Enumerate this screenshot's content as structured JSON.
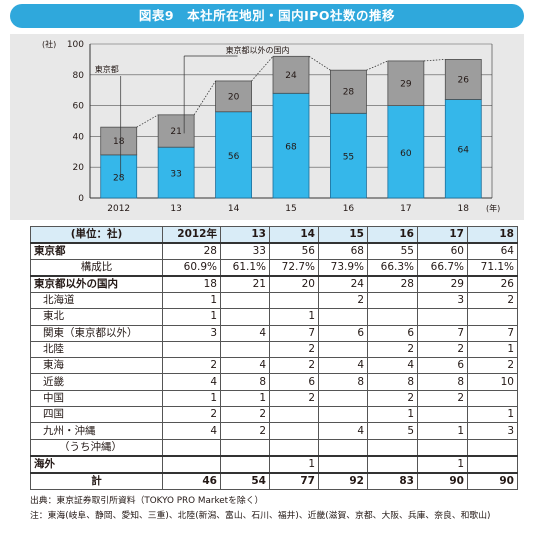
{
  "title": "図表9　本社所在地別・国内IPO社数の推移",
  "chart_data": {
    "type": "bar",
    "stacked": true,
    "categories": [
      "2012",
      "13",
      "14",
      "15",
      "16",
      "17",
      "18"
    ],
    "x_unit": "(年)",
    "y_unit": "(社)",
    "ylim": [
      0,
      100
    ],
    "yticks": [
      0,
      20,
      40,
      60,
      80,
      100
    ],
    "series": [
      {
        "name": "東京都",
        "values": [
          28,
          33,
          56,
          68,
          55,
          60,
          64
        ],
        "color": "#35b7ea"
      },
      {
        "name": "東京都以外の国内",
        "values": [
          18,
          21,
          20,
          24,
          28,
          29,
          26
        ],
        "color": "#9d9d9d"
      }
    ],
    "totals_line": [
      46,
      54,
      76,
      92,
      83,
      89,
      90
    ],
    "grid": true
  },
  "table": {
    "unit_label": "(単位：社)",
    "years": [
      "2012年",
      "13",
      "14",
      "15",
      "16",
      "17",
      "18"
    ],
    "rows": [
      {
        "kind": "main",
        "section": true,
        "label": "東京都",
        "values": [
          "28",
          "33",
          "56",
          "68",
          "55",
          "60",
          "64"
        ]
      },
      {
        "kind": "center",
        "label": "構成比",
        "values": [
          "60.9%",
          "61.1%",
          "72.7%",
          "73.9%",
          "66.3%",
          "66.7%",
          "71.1%"
        ]
      },
      {
        "kind": "main",
        "section": true,
        "label": "東京都以外の国内",
        "values": [
          "18",
          "21",
          "20",
          "24",
          "28",
          "29",
          "26"
        ]
      },
      {
        "kind": "sub",
        "subgroup": true,
        "label": "北海道",
        "values": [
          "1",
          "",
          "",
          "2",
          "",
          "3",
          "2"
        ]
      },
      {
        "kind": "sub",
        "label": "東北",
        "values": [
          "1",
          "",
          "1",
          "",
          "",
          "",
          ""
        ]
      },
      {
        "kind": "sub",
        "label": "関東（東京都以外）",
        "values": [
          "3",
          "4",
          "7",
          "6",
          "6",
          "7",
          "7"
        ]
      },
      {
        "kind": "sub",
        "label": "北陸",
        "values": [
          "",
          "",
          "2",
          "",
          "2",
          "2",
          "1"
        ]
      },
      {
        "kind": "sub",
        "label": "東海",
        "values": [
          "2",
          "4",
          "2",
          "4",
          "4",
          "6",
          "2"
        ]
      },
      {
        "kind": "sub",
        "label": "近畿",
        "values": [
          "4",
          "8",
          "6",
          "8",
          "8",
          "8",
          "10"
        ]
      },
      {
        "kind": "sub",
        "label": "中国",
        "values": [
          "1",
          "1",
          "2",
          "",
          "2",
          "2",
          ""
        ]
      },
      {
        "kind": "sub",
        "label": "四国",
        "values": [
          "2",
          "2",
          "",
          "",
          "1",
          "",
          "1"
        ]
      },
      {
        "kind": "sub",
        "label": "九州・沖縄",
        "values": [
          "4",
          "2",
          "",
          "4",
          "5",
          "1",
          "3"
        ]
      },
      {
        "kind": "sub2",
        "label": "（うち沖縄）",
        "values": [
          "",
          "",
          "",
          "",
          "",
          "",
          ""
        ]
      },
      {
        "kind": "main",
        "section": true,
        "label": "海外",
        "values": [
          "",
          "",
          "1",
          "",
          "",
          "1",
          ""
        ]
      },
      {
        "kind": "center",
        "total": true,
        "section": true,
        "label": "計",
        "values": [
          "46",
          "54",
          "77",
          "92",
          "83",
          "90",
          "90"
        ]
      }
    ]
  },
  "notes": [
    "出典：東京証券取引所資料（TOKYO PRO Marketを除く）",
    "注：東海(岐阜、静岡、愛知、三重)、北陸(新潟、富山、石川、福井)、近畿(滋賀、京都、大阪、兵庫、奈良、和歌山)"
  ]
}
